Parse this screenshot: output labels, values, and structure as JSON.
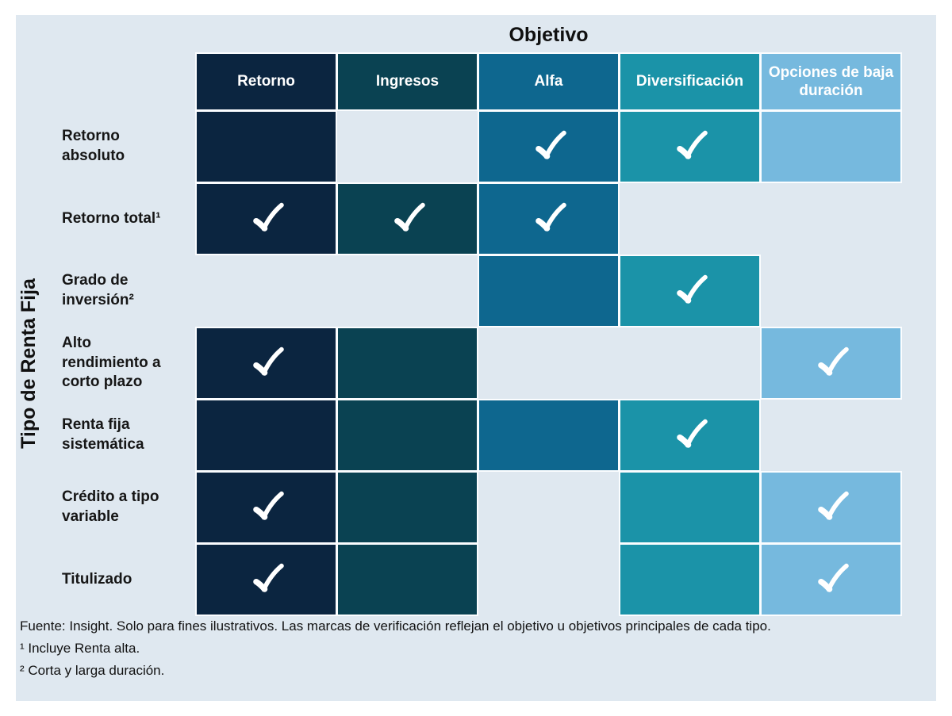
{
  "title": "Objetivo",
  "y_axis_label": "Tipo de Renta Fija",
  "panel_color": "#dfe8f0",
  "grid_line_color": "#fbfdff",
  "check_color": "#ffffff",
  "columns": [
    {
      "label": "Retorno",
      "color": "#0b2540"
    },
    {
      "label": "Ingresos",
      "color": "#0a4252"
    },
    {
      "label": "Alfa",
      "color": "#0e678f"
    },
    {
      "label": "Diversificación",
      "color": "#1b93a8"
    },
    {
      "label": "Opciones de baja duración",
      "color": "#76b9de"
    }
  ],
  "rows": [
    {
      "label": "Retorno\nabsoluto",
      "cells": [
        "filled",
        "empty",
        "check",
        "check",
        "filled"
      ]
    },
    {
      "label": "Retorno total¹",
      "cells": [
        "check",
        "check",
        "check",
        "empty",
        "empty"
      ]
    },
    {
      "label": "Grado de\ninversión²",
      "cells": [
        "empty",
        "empty",
        "filled",
        "check",
        "empty"
      ]
    },
    {
      "label": "Alto\nrendimiento a\ncorto plazo",
      "cells": [
        "check",
        "filled",
        "empty",
        "empty",
        "check"
      ]
    },
    {
      "label": "Renta fija\nsistemática",
      "cells": [
        "filled",
        "filled",
        "filled",
        "check",
        "empty"
      ]
    },
    {
      "label": "Crédito a tipo\nvariable",
      "cells": [
        "check",
        "filled",
        "empty",
        "filled",
        "check"
      ]
    },
    {
      "label": "Titulizado",
      "cells": [
        "check",
        "filled",
        "empty",
        "filled",
        "check"
      ]
    }
  ],
  "footnotes": [
    "Fuente: Insight. Solo para fines ilustrativos. Las marcas de verificación reflejan el objetivo u objetivos principales de cada tipo.",
    "¹ Incluye Renta alta.",
    "² Corta y larga duración."
  ],
  "chart_data": {
    "type": "heatmap",
    "title": "Objetivo",
    "ylabel": "Tipo de Renta Fija",
    "columns": [
      "Retorno",
      "Ingresos",
      "Alfa",
      "Diversificación",
      "Opciones de baja duración"
    ],
    "rows": [
      "Retorno absoluto",
      "Retorno total¹",
      "Grado de inversión²",
      "Alto rendimiento a corto plazo",
      "Renta fija sistemática",
      "Crédito a tipo variable",
      "Titulizado"
    ],
    "cell_states": "check = marca de verificación sobre celda coloreada; filled = celda coloreada sin marca; empty = sin relación",
    "matrix": [
      [
        "filled",
        "empty",
        "check",
        "check",
        "filled"
      ],
      [
        "check",
        "check",
        "check",
        "empty",
        "empty"
      ],
      [
        "empty",
        "empty",
        "filled",
        "check",
        "empty"
      ],
      [
        "check",
        "filled",
        "empty",
        "empty",
        "check"
      ],
      [
        "filled",
        "filled",
        "filled",
        "check",
        "empty"
      ],
      [
        "check",
        "filled",
        "empty",
        "filled",
        "check"
      ],
      [
        "check",
        "filled",
        "empty",
        "filled",
        "check"
      ]
    ],
    "column_colors": [
      "#0b2540",
      "#0a4252",
      "#0e678f",
      "#1b93a8",
      "#76b9de"
    ],
    "legend_position": "none",
    "grid": false
  }
}
